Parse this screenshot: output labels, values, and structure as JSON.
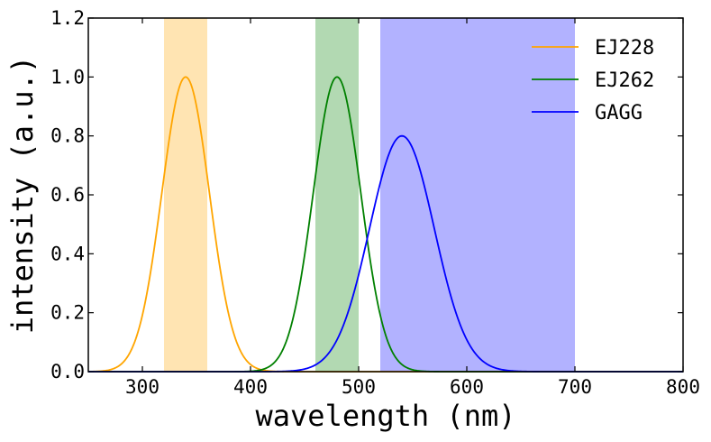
{
  "chart_data": {
    "type": "line",
    "title": "",
    "xlabel": "wavelength (nm)",
    "ylabel": "intensity (a.u.)",
    "xlim": [
      250,
      800
    ],
    "ylim": [
      0.0,
      1.2
    ],
    "xticks": [
      300,
      400,
      500,
      600,
      700,
      800
    ],
    "xtick_labels": [
      "300",
      "400",
      "500",
      "600",
      "700",
      "800"
    ],
    "yticks": [
      0.0,
      0.2,
      0.4,
      0.6,
      0.8,
      1.0,
      1.2
    ],
    "ytick_labels": [
      "0.0",
      "0.2",
      "0.4",
      "0.6",
      "0.8",
      "1.0",
      "1.2"
    ],
    "grid": false,
    "legend_position": "top-right",
    "bands": [
      {
        "name": "EJ228-band",
        "x0": 320,
        "x1": 360,
        "color": "#ffa500",
        "alpha": 0.3
      },
      {
        "name": "EJ262-band",
        "x0": 460,
        "x1": 500,
        "color": "#008000",
        "alpha": 0.3
      },
      {
        "name": "GAGG-band",
        "x0": 520,
        "x1": 700,
        "color": "#0000ff",
        "alpha": 0.3
      }
    ],
    "series": [
      {
        "name": "EJ228",
        "color": "#ffa500",
        "shape": "gaussian",
        "center": 340,
        "sigma": 22,
        "peak": 1.0
      },
      {
        "name": "EJ262",
        "color": "#008000",
        "shape": "gaussian",
        "center": 480,
        "sigma": 22,
        "peak": 1.0
      },
      {
        "name": "GAGG",
        "color": "#0000ff",
        "shape": "gaussian",
        "center": 540,
        "sigma": 30,
        "peak": 0.8
      }
    ]
  }
}
